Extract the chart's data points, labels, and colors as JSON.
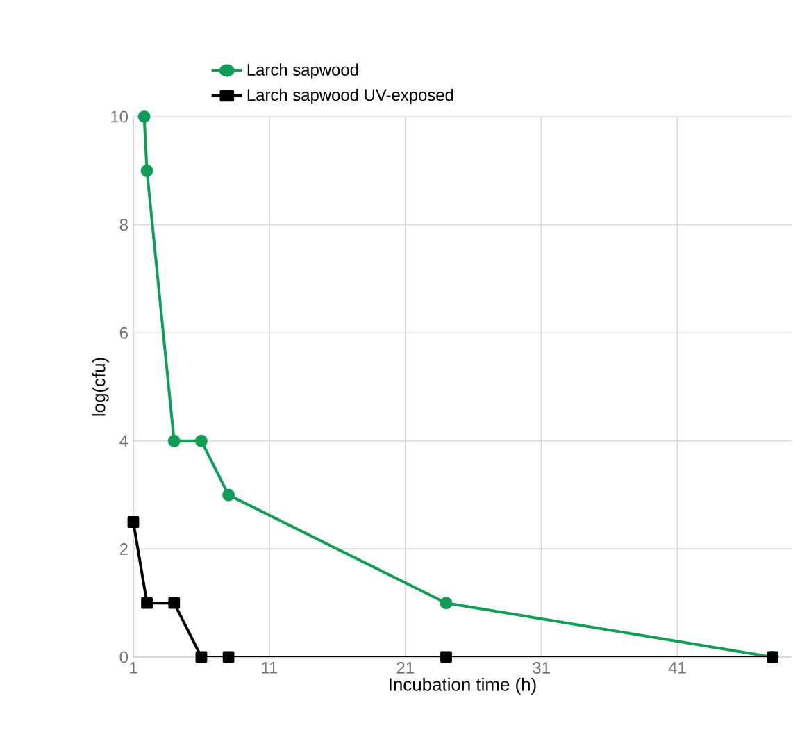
{
  "chart_data": {
    "type": "line",
    "xlabel": "Incubation time (h)",
    "ylabel": "log(cfu)",
    "xlim": [
      1,
      49.4
    ],
    "xticks": [
      1,
      11,
      21,
      31,
      41
    ],
    "ylim": [
      0,
      10
    ],
    "yticks": [
      0,
      2,
      4,
      6,
      8,
      10
    ],
    "grid": true,
    "legend": "top",
    "series": [
      {
        "name": "Larch sapwood",
        "color": "#0f9d58",
        "marker": "circle",
        "x": [
          1.8,
          2,
          4,
          6,
          8,
          24,
          48
        ],
        "values": [
          10,
          9,
          4,
          4,
          3,
          1,
          0
        ]
      },
      {
        "name": "Larch sapwood UV-exposed",
        "color": "#000000",
        "marker": "square",
        "x": [
          1,
          2,
          4,
          6,
          8,
          24,
          48
        ],
        "values": [
          2.5,
          1,
          1,
          0,
          0,
          0,
          0
        ]
      }
    ]
  }
}
